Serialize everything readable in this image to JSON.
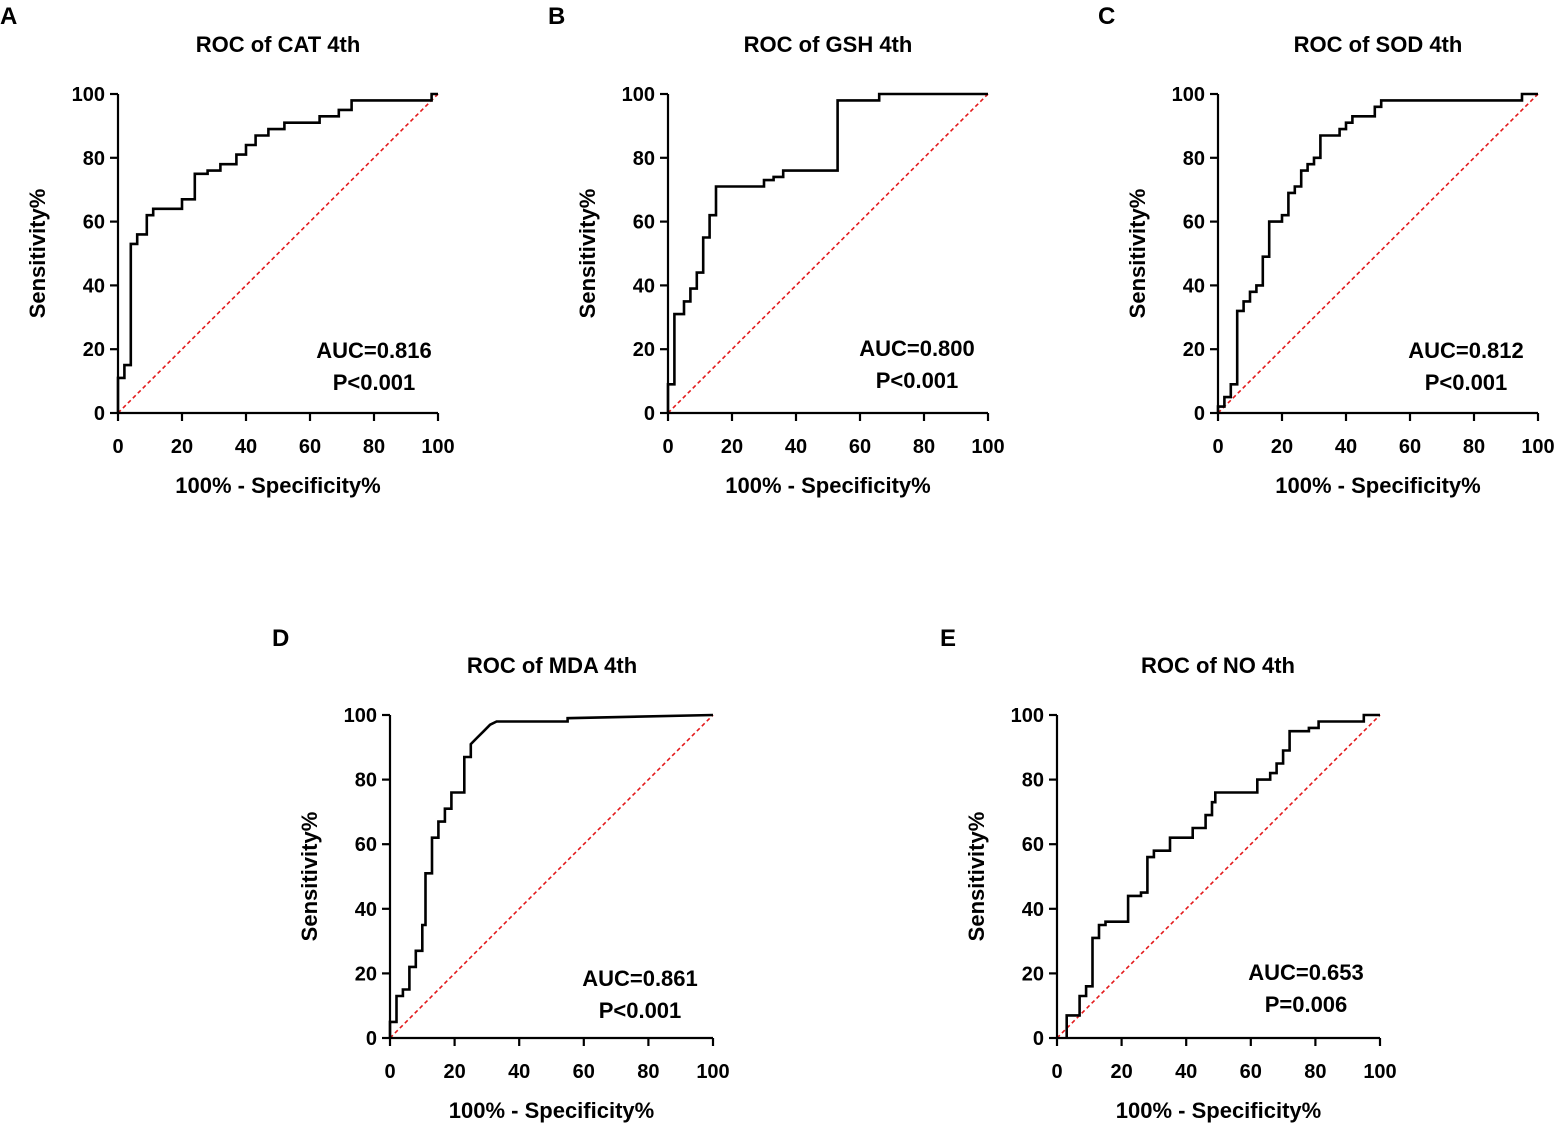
{
  "chart_data": [
    {
      "type": "line",
      "panel": "A",
      "title": "ROC of CAT 4th",
      "xlabel": "100% - Specificity%",
      "ylabel": "Sensitivity%",
      "xlim": [
        0,
        100
      ],
      "ylim": [
        0,
        100
      ],
      "xticks": [
        "0",
        "20",
        "40",
        "60",
        "80",
        "100"
      ],
      "yticks": [
        "0",
        "20",
        "40",
        "60",
        "80",
        "100"
      ],
      "annotations": [
        "AUC=0.816",
        "P<0.001"
      ],
      "series": [
        {
          "name": "ROC curve",
          "x": [
            0,
            0,
            2,
            2,
            4,
            4,
            6,
            6,
            9,
            9,
            11,
            11,
            20,
            20,
            24,
            24,
            28,
            28,
            32,
            32,
            37,
            37,
            40,
            40,
            43,
            43,
            47,
            47,
            52,
            52,
            63,
            63,
            69,
            69,
            73,
            73,
            78,
            78,
            98,
            98,
            100
          ],
          "y": [
            0,
            11,
            11,
            15,
            15,
            53,
            53,
            56,
            56,
            62,
            62,
            64,
            64,
            67,
            67,
            75,
            75,
            76,
            76,
            78,
            78,
            81,
            81,
            84,
            84,
            87,
            87,
            89,
            89,
            91,
            91,
            93,
            93,
            95,
            95,
            98,
            98,
            98,
            98,
            100,
            100
          ]
        },
        {
          "name": "Reference",
          "x": [
            0,
            100
          ],
          "y": [
            0,
            100
          ]
        }
      ]
    },
    {
      "type": "line",
      "panel": "B",
      "title": "ROC of GSH 4th",
      "xlabel": "100% - Specificity%",
      "ylabel": "Sensitivity%",
      "xlim": [
        0,
        100
      ],
      "ylim": [
        0,
        100
      ],
      "xticks": [
        "0",
        "20",
        "40",
        "60",
        "80",
        "100"
      ],
      "yticks": [
        "0",
        "20",
        "40",
        "60",
        "80",
        "100"
      ],
      "annotations": [
        "AUC=0.800",
        "P<0.001"
      ],
      "series": [
        {
          "name": "ROC curve",
          "x": [
            0,
            0,
            2,
            2,
            5,
            5,
            7,
            7,
            9,
            9,
            11,
            11,
            13,
            13,
            15,
            15,
            17,
            17,
            30,
            30,
            33,
            33,
            36,
            36,
            40,
            40,
            53,
            53,
            66,
            66,
            100
          ],
          "y": [
            0,
            9,
            9,
            31,
            31,
            35,
            35,
            39,
            39,
            44,
            44,
            55,
            55,
            62,
            62,
            71,
            71,
            71,
            71,
            73,
            73,
            74,
            74,
            76,
            76,
            76,
            76,
            98,
            98,
            100,
            100
          ]
        },
        {
          "name": "Reference",
          "x": [
            0,
            100
          ],
          "y": [
            0,
            100
          ]
        }
      ]
    },
    {
      "type": "line",
      "panel": "C",
      "title": "ROC of SOD 4th",
      "xlabel": "100% - Specificity%",
      "ylabel": "Sensitivity%",
      "xlim": [
        0,
        100
      ],
      "ylim": [
        0,
        100
      ],
      "xticks": [
        "0",
        "20",
        "40",
        "60",
        "80",
        "100"
      ],
      "yticks": [
        "0",
        "20",
        "40",
        "60",
        "80",
        "100"
      ],
      "annotations": [
        "AUC=0.812",
        "P<0.001"
      ],
      "series": [
        {
          "name": "ROC curve",
          "x": [
            0,
            0,
            2,
            2,
            4,
            4,
            6,
            6,
            8,
            8,
            10,
            10,
            12,
            12,
            14,
            14,
            16,
            16,
            20,
            20,
            22,
            22,
            24,
            24,
            26,
            26,
            28,
            28,
            30,
            30,
            32,
            32,
            38,
            38,
            40,
            40,
            42,
            42,
            44,
            44,
            49,
            49,
            51,
            51,
            95,
            95,
            100
          ],
          "y": [
            0,
            2,
            2,
            5,
            5,
            9,
            9,
            32,
            32,
            35,
            35,
            38,
            38,
            40,
            40,
            49,
            49,
            60,
            60,
            62,
            62,
            69,
            69,
            71,
            71,
            76,
            76,
            78,
            78,
            80,
            80,
            87,
            87,
            89,
            89,
            91,
            91,
            93,
            93,
            93,
            93,
            96,
            96,
            98,
            98,
            100,
            100
          ]
        },
        {
          "name": "Reference",
          "x": [
            0,
            100
          ],
          "y": [
            0,
            100
          ]
        }
      ]
    },
    {
      "type": "line",
      "panel": "D",
      "title": "ROC of MDA 4th",
      "xlabel": "100% - Specificity%",
      "ylabel": "Sensitivity%",
      "xlim": [
        0,
        100
      ],
      "ylim": [
        0,
        100
      ],
      "xticks": [
        "0",
        "20",
        "40",
        "60",
        "80",
        "100"
      ],
      "yticks": [
        "0",
        "20",
        "40",
        "60",
        "80",
        "100"
      ],
      "annotations": [
        "AUC=0.861",
        "P<0.001"
      ],
      "series": [
        {
          "name": "ROC curve",
          "x": [
            0,
            0,
            2,
            2,
            4,
            4,
            6,
            6,
            8,
            8,
            10,
            10,
            11,
            11,
            13,
            13,
            15,
            15,
            17,
            17,
            19,
            19,
            23,
            23,
            25,
            25,
            27,
            29,
            31,
            33,
            36,
            55,
            55,
            100
          ],
          "y": [
            0,
            5,
            5,
            13,
            13,
            15,
            15,
            22,
            22,
            27,
            27,
            35,
            35,
            51,
            51,
            62,
            62,
            67,
            67,
            71,
            71,
            76,
            76,
            87,
            87,
            91,
            93,
            95,
            97,
            98,
            98,
            98,
            99,
            100
          ]
        },
        {
          "name": "Reference",
          "x": [
            0,
            100
          ],
          "y": [
            0,
            100
          ]
        }
      ]
    },
    {
      "type": "line",
      "panel": "E",
      "title": "ROC of NO 4th",
      "xlabel": "100% - Specificity%",
      "ylabel": "Sensitivity%",
      "xlim": [
        0,
        100
      ],
      "ylim": [
        0,
        100
      ],
      "xticks": [
        "0",
        "20",
        "40",
        "60",
        "80",
        "100"
      ],
      "yticks": [
        "0",
        "20",
        "40",
        "60",
        "80",
        "100"
      ],
      "annotations": [
        "AUC=0.653",
        "P=0.006"
      ],
      "series": [
        {
          "name": "ROC curve",
          "x": [
            3,
            3,
            7,
            7,
            9,
            9,
            11,
            11,
            13,
            13,
            15,
            15,
            18,
            18,
            22,
            22,
            26,
            26,
            28,
            28,
            30,
            30,
            35,
            35,
            42,
            42,
            46,
            46,
            48,
            48,
            49,
            49,
            62,
            62,
            66,
            66,
            68,
            68,
            70,
            70,
            72,
            72,
            74,
            74,
            78,
            78,
            81,
            81,
            85,
            85,
            95,
            95,
            100
          ],
          "y": [
            0,
            7,
            7,
            13,
            13,
            16,
            16,
            31,
            31,
            35,
            35,
            36,
            36,
            36,
            36,
            44,
            44,
            45,
            45,
            56,
            56,
            58,
            58,
            62,
            62,
            65,
            65,
            69,
            69,
            73,
            73,
            76,
            76,
            80,
            80,
            82,
            82,
            85,
            85,
            89,
            89,
            95,
            95,
            95,
            95,
            96,
            96,
            98,
            98,
            98,
            98,
            100,
            100
          ]
        },
        {
          "name": "Reference",
          "x": [
            0,
            100
          ],
          "y": [
            0,
            100
          ]
        }
      ]
    }
  ]
}
